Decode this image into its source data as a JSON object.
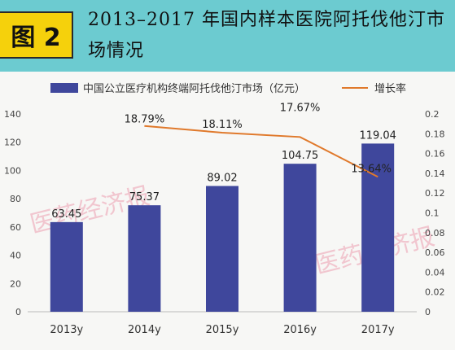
{
  "header": {
    "badge": "图 2",
    "title": "2013–2017 年国内样本医院阿托伐他汀市场情况"
  },
  "watermark": "医药经济报",
  "chart_data": {
    "type": "bar",
    "categories": [
      "2013y",
      "2014y",
      "2015y",
      "2016y",
      "2017y"
    ],
    "series": [
      {
        "name": "中国公立医疗机构终端阿托伐他汀市场（亿元）",
        "type": "bar",
        "axis": "left",
        "values": [
          63.45,
          75.37,
          89.02,
          104.75,
          119.04
        ],
        "labels": [
          "63.45",
          "75.37",
          "89.02",
          "104.75",
          "119.04"
        ],
        "color": "#3f479c"
      },
      {
        "name": "增长率",
        "type": "line",
        "axis": "right",
        "values": [
          null,
          0.1879,
          0.1811,
          0.1767,
          0.1364
        ],
        "labels": [
          "",
          "18.79%",
          "18.11%",
          "17.67%",
          "13.64%"
        ],
        "color": "#e0792b"
      }
    ],
    "y_left": {
      "min": 0,
      "max": 140,
      "ticks": [
        "0",
        "20",
        "40",
        "60",
        "80",
        "100",
        "120",
        "140"
      ]
    },
    "y_right": {
      "min": 0,
      "max": 0.2,
      "ticks": [
        "0",
        "0.02",
        "0.04",
        "0.06",
        "0.08",
        "0.1",
        "0.12",
        "0.14",
        "0.16",
        "0.18",
        "0.2"
      ]
    },
    "legend_position": "top",
    "grid": false
  }
}
